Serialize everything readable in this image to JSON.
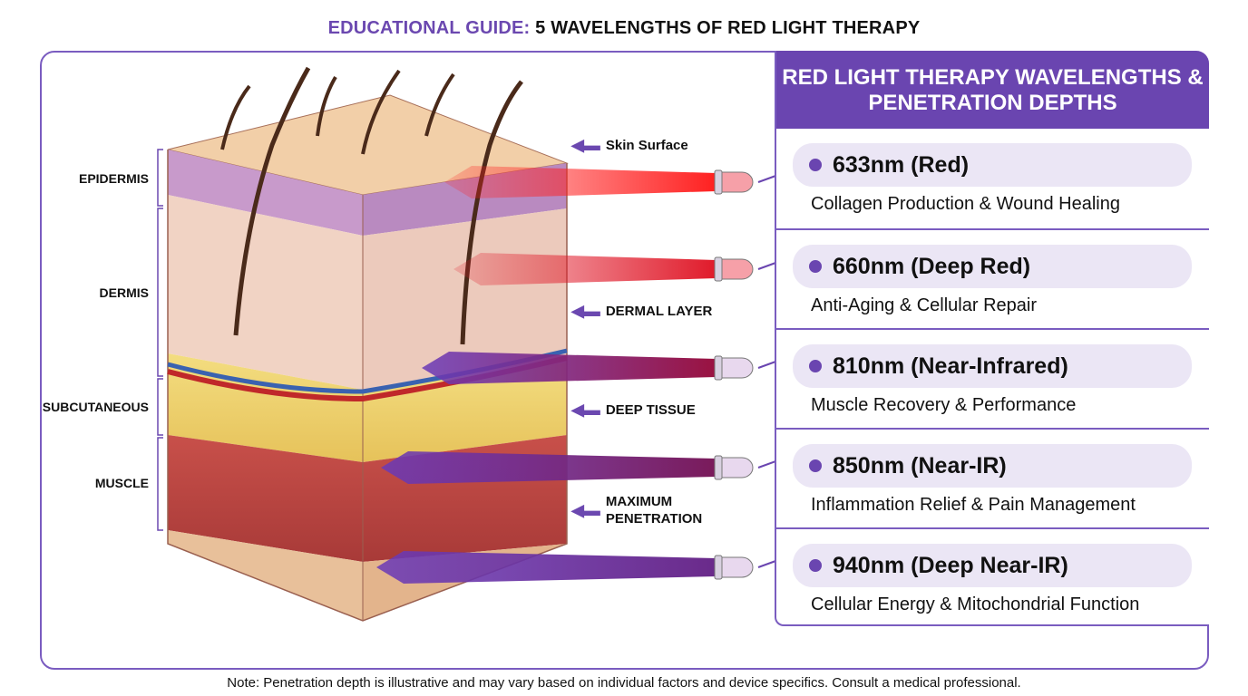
{
  "title": {
    "accent": "EDUCATIONAL GUIDE:",
    "main": " 5 WAVELENGTHS OF RED LIGHT THERAPY"
  },
  "layers": [
    {
      "label": "EPIDERMIS"
    },
    {
      "label": "DERMIS"
    },
    {
      "label": "SUBCUTANEOUS"
    },
    {
      "label": "MUSCLE"
    }
  ],
  "depth_labels": [
    {
      "label": "Skin Surface"
    },
    {
      "label": "DERMAL LAYER"
    },
    {
      "label": "DEEP TISSUE"
    },
    {
      "label": "MAXIMUM PENETRATION"
    }
  ],
  "panel": {
    "header": "RED LIGHT THERAPY WAVELENGTHS & PENETRATION DEPTHS",
    "items": [
      {
        "wavelength": "633nm (Red)",
        "benefit": "Collagen Production & Wound Healing",
        "color": "#ff2020"
      },
      {
        "wavelength": "660nm (Deep Red)",
        "benefit": "Anti-Aging & Cellular Repair",
        "color": "#e01a2a"
      },
      {
        "wavelength": "810nm (Near-Infrared)",
        "benefit": "Muscle Recovery & Performance",
        "color": "#9a1240"
      },
      {
        "wavelength": "850nm (Near-IR)",
        "benefit": "Inflammation Relief & Pain Management",
        "color": "#7a1a5a"
      },
      {
        "wavelength": "940nm (Deep Near-IR)",
        "benefit": "Cellular Energy & Mitochondrial Function",
        "color": "#6a2a8a"
      }
    ]
  },
  "accent_color": "#6a45b0",
  "note": "Note: Penetration depth is illustrative and may vary based on individual factors and device specifics. Consult a medical professional."
}
